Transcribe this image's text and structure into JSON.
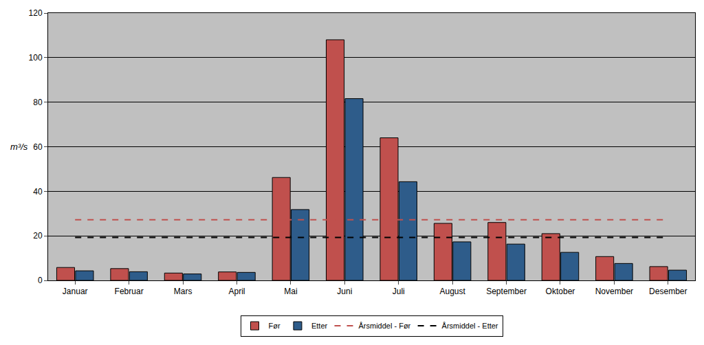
{
  "chart_data": {
    "type": "bar",
    "y_label": "m³/s",
    "categories": [
      "Januar",
      "Februar",
      "Mars",
      "April",
      "Mai",
      "Juni",
      "Juli",
      "August",
      "September",
      "Oktober",
      "November",
      "Desember"
    ],
    "series": [
      {
        "name": "Før",
        "type": "bar",
        "color": "#c0504d",
        "values": [
          5.8,
          5.3,
          3.3,
          3.8,
          46.2,
          108,
          64,
          25.6,
          26,
          21,
          10.7,
          6.2
        ]
      },
      {
        "name": "Etter",
        "type": "bar",
        "color": "#2e5c8a",
        "values": [
          4.3,
          3.9,
          2.9,
          3.6,
          31.8,
          81.6,
          44.3,
          17.3,
          16.3,
          12.6,
          7.6,
          4.6
        ]
      },
      {
        "name": "Årsmiddel - Før",
        "type": "line",
        "line_style": "dashed",
        "color": "#c0504d",
        "values": [
          27.2,
          27.2,
          27.2,
          27.2,
          27.2,
          27.2,
          27.2,
          27.2,
          27.2,
          27.2,
          27.2,
          27.2
        ]
      },
      {
        "name": "Årsmiddel - Etter",
        "type": "line",
        "line_style": "dashed",
        "color": "#000000",
        "values": [
          19.3,
          19.3,
          19.3,
          19.3,
          19.3,
          19.3,
          19.3,
          19.3,
          19.3,
          19.3,
          19.3,
          19.3
        ]
      }
    ],
    "ylim": [
      0,
      120
    ],
    "yticks": [
      0,
      20,
      40,
      60,
      80,
      100,
      120
    ],
    "grid": true,
    "legend": "bottom"
  }
}
